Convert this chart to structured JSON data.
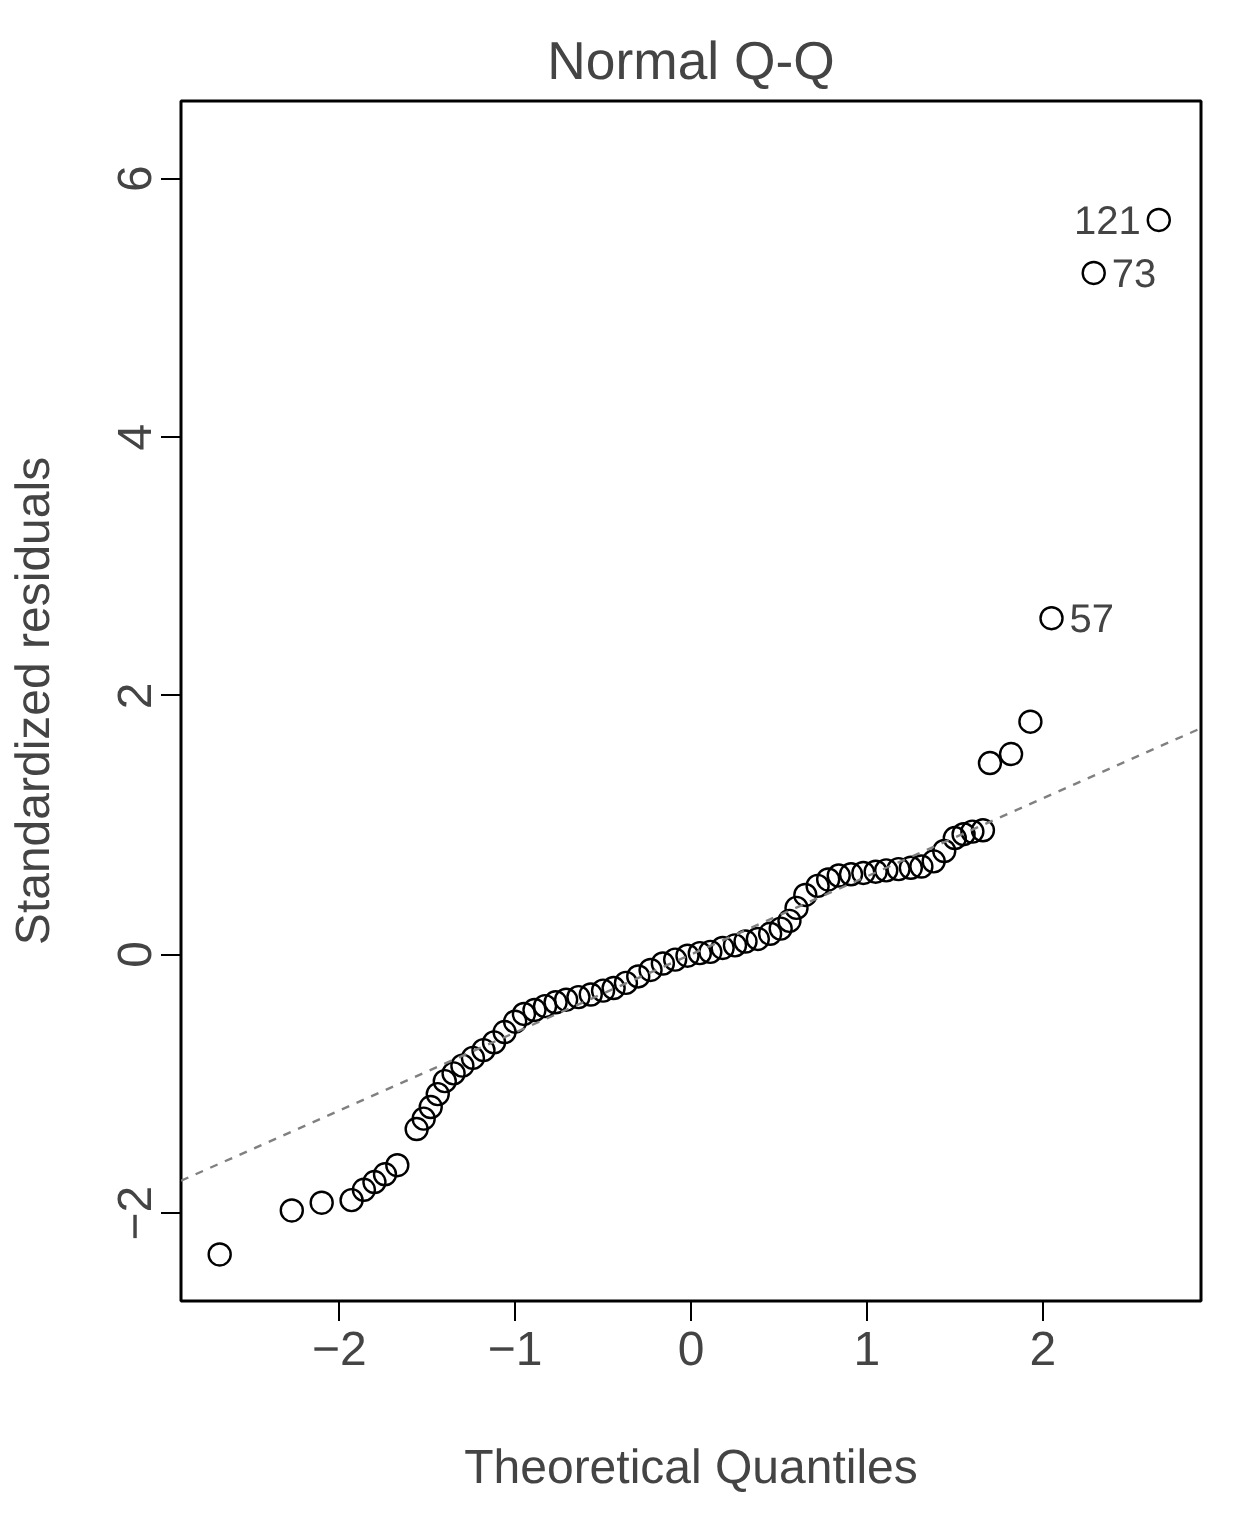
{
  "chart_data": {
    "type": "scatter",
    "title": "Normal Q-Q",
    "xlabel": "Theoretical Quantiles",
    "ylabel": "Standardized residuals",
    "xlim": [
      -2.9,
      2.9
    ],
    "ylim": [
      -2.68,
      6.6
    ],
    "xticks": [
      -2,
      -1,
      0,
      1,
      2
    ],
    "yticks": [
      -2,
      0,
      2,
      4,
      6
    ],
    "grid": false,
    "series": [
      {
        "marker": "circle",
        "color": "#000000",
        "x": [
          -2.68,
          -2.27,
          -2.1,
          -1.93,
          -1.86,
          -1.8,
          -1.74,
          -1.67,
          -1.56,
          -1.52,
          -1.48,
          -1.44,
          -1.4,
          -1.35,
          -1.3,
          -1.24,
          -1.18,
          -1.12,
          -1.06,
          -1.0,
          -0.95,
          -0.89,
          -0.83,
          -0.77,
          -0.71,
          -0.64,
          -0.57,
          -0.5,
          -0.44,
          -0.37,
          -0.3,
          -0.23,
          -0.16,
          -0.09,
          -0.02,
          0.05,
          0.11,
          0.18,
          0.25,
          0.31,
          0.38,
          0.45,
          0.51,
          0.56,
          0.6,
          0.65,
          0.72,
          0.78,
          0.84,
          0.91,
          0.98,
          1.05,
          1.11,
          1.18,
          1.25,
          1.31,
          1.38,
          1.44,
          1.5,
          1.55,
          1.6,
          1.66,
          1.7,
          1.82,
          1.93,
          2.05,
          2.29,
          2.66
        ],
        "values": [
          -2.32,
          -1.98,
          -1.92,
          -1.9,
          -1.82,
          -1.76,
          -1.7,
          -1.63,
          -1.35,
          -1.27,
          -1.18,
          -1.08,
          -0.98,
          -0.92,
          -0.86,
          -0.8,
          -0.74,
          -0.68,
          -0.6,
          -0.52,
          -0.46,
          -0.43,
          -0.4,
          -0.37,
          -0.35,
          -0.33,
          -0.31,
          -0.28,
          -0.26,
          -0.22,
          -0.17,
          -0.12,
          -0.07,
          -0.04,
          -0.01,
          0.01,
          0.02,
          0.05,
          0.07,
          0.1,
          0.12,
          0.16,
          0.2,
          0.26,
          0.36,
          0.46,
          0.53,
          0.58,
          0.61,
          0.62,
          0.63,
          0.64,
          0.65,
          0.66,
          0.67,
          0.68,
          0.72,
          0.8,
          0.9,
          0.93,
          0.95,
          0.96,
          1.48,
          1.55,
          1.8,
          2.6,
          5.27,
          5.68
        ]
      },
      {
        "type": "line",
        "color": "#808080",
        "line_style": "dashed",
        "x": [
          -2.9,
          2.9
        ],
        "values": [
          -1.75,
          1.75
        ]
      }
    ],
    "annotations": [
      {
        "text": "121",
        "x": 2.66,
        "y": 5.68
      },
      {
        "text": "73",
        "x": 2.29,
        "y": 5.27
      },
      {
        "text": "57",
        "x": 2.05,
        "y": 2.6
      }
    ]
  }
}
